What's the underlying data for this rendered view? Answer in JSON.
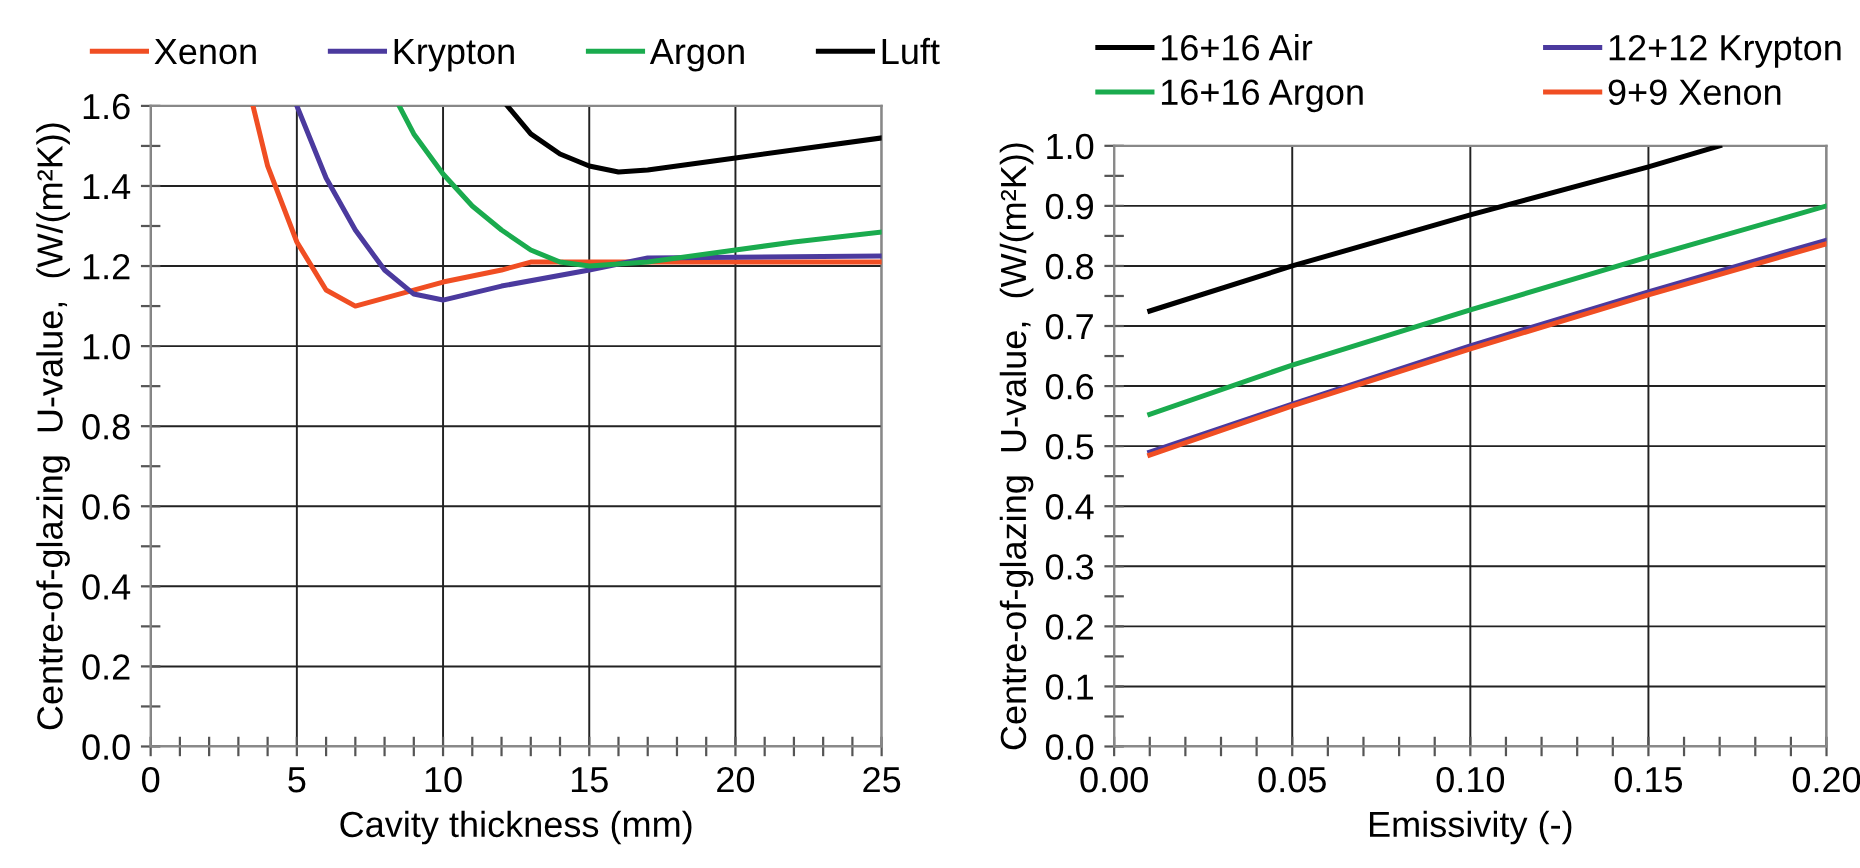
{
  "chart_data": [
    {
      "type": "line",
      "xlabel": "Cavity thickness (mm)",
      "ylabel": "Centre-of-glazing  U-value,  (W/(m²K))",
      "xlim": [
        0,
        25
      ],
      "ylim": [
        0,
        1.6
      ],
      "xticks": [
        0,
        {
          "value": 1,
          "label": null
        },
        {
          "value": 2,
          "label": null
        },
        {
          "value": 3,
          "label": null
        },
        {
          "value": 4,
          "label": null
        },
        5,
        {
          "value": 6,
          "label": null
        },
        {
          "value": 7,
          "label": null
        },
        {
          "value": 8,
          "label": null
        },
        {
          "value": 9,
          "label": null
        },
        10,
        {
          "value": 11,
          "label": null
        },
        {
          "value": 12,
          "label": null
        },
        {
          "value": 13,
          "label": null
        },
        {
          "value": 14,
          "label": null
        },
        15,
        {
          "value": 16,
          "label": null
        },
        {
          "value": 17,
          "label": null
        },
        {
          "value": 18,
          "label": null
        },
        {
          "value": 19,
          "label": null
        },
        20,
        {
          "value": 21,
          "label": null
        },
        {
          "value": 22,
          "label": null
        },
        {
          "value": 23,
          "label": null
        },
        {
          "value": 24,
          "label": null
        },
        25
      ],
      "yticks": [
        {
          "value": 0,
          "label": "0.0"
        },
        {
          "value": 0.1,
          "label": null
        },
        {
          "value": 0.2,
          "label": "0.2"
        },
        {
          "value": 0.3,
          "label": null
        },
        {
          "value": 0.4,
          "label": "0.4"
        },
        {
          "value": 0.5,
          "label": null
        },
        {
          "value": 0.6,
          "label": "0.6"
        },
        {
          "value": 0.7,
          "label": null
        },
        {
          "value": 0.8,
          "label": "0.8"
        },
        {
          "value": 0.9,
          "label": null
        },
        {
          "value": 1.0,
          "label": "1.0"
        },
        {
          "value": 1.1,
          "label": null
        },
        {
          "value": 1.2,
          "label": "1.2"
        },
        {
          "value": 1.3,
          "label": null
        },
        {
          "value": 1.4,
          "label": "1.4"
        },
        {
          "value": 1.5,
          "label": null
        },
        {
          "value": 1.6,
          "label": "1.6"
        }
      ],
      "grid": true,
      "legend": "top",
      "marker": "none",
      "line_style": "solid",
      "series": [
        {
          "name": "Xenon",
          "color": "#f04e23",
          "x": [
            3.5,
            4,
            5,
            6,
            7,
            8,
            10,
            12,
            13,
            25
          ],
          "values": [
            1.6,
            1.45,
            1.26,
            1.14,
            1.1,
            1.12,
            1.16,
            1.19,
            1.21,
            1.21
          ]
        },
        {
          "name": "Krypton",
          "color": "#4b3a9e",
          "x": [
            5,
            6,
            7,
            8,
            9,
            10,
            12,
            15,
            17,
            25
          ],
          "values": [
            1.6,
            1.42,
            1.29,
            1.19,
            1.13,
            1.115,
            1.15,
            1.19,
            1.22,
            1.225
          ]
        },
        {
          "name": "Argon",
          "color": "#1aab4e",
          "x": [
            8.5,
            9,
            10,
            11,
            12,
            13,
            14,
            15,
            17,
            20,
            22,
            25
          ],
          "values": [
            1.6,
            1.53,
            1.43,
            1.35,
            1.29,
            1.24,
            1.21,
            1.2,
            1.21,
            1.24,
            1.26,
            1.285
          ]
        },
        {
          "name": "Luft",
          "color": "#000000",
          "x": [
            12.2,
            13,
            14,
            15,
            16,
            17,
            20,
            25
          ],
          "values": [
            1.6,
            1.53,
            1.48,
            1.45,
            1.435,
            1.44,
            1.47,
            1.52
          ]
        }
      ]
    },
    {
      "type": "line",
      "xlabel": "Emissivity (-)",
      "ylabel": "Centre-of-glazing  U-value,  (W/(m²K))",
      "xlim": [
        0,
        0.2
      ],
      "ylim": [
        0,
        1.0
      ],
      "xticks": [
        {
          "value": 0,
          "label": "0.00"
        },
        {
          "value": 0.01,
          "label": null
        },
        {
          "value": 0.02,
          "label": null
        },
        {
          "value": 0.03,
          "label": null
        },
        {
          "value": 0.04,
          "label": null
        },
        {
          "value": 0.05,
          "label": "0.05"
        },
        {
          "value": 0.06,
          "label": null
        },
        {
          "value": 0.07,
          "label": null
        },
        {
          "value": 0.08,
          "label": null
        },
        {
          "value": 0.09,
          "label": null
        },
        {
          "value": 0.1,
          "label": "0.10"
        },
        {
          "value": 0.11,
          "label": null
        },
        {
          "value": 0.12,
          "label": null
        },
        {
          "value": 0.13,
          "label": null
        },
        {
          "value": 0.14,
          "label": null
        },
        {
          "value": 0.15,
          "label": "0.15"
        },
        {
          "value": 0.16,
          "label": null
        },
        {
          "value": 0.17,
          "label": null
        },
        {
          "value": 0.18,
          "label": null
        },
        {
          "value": 0.19,
          "label": null
        },
        {
          "value": 0.2,
          "label": "0.20"
        }
      ],
      "yticks": [
        {
          "value": 0,
          "label": "0.0"
        },
        {
          "value": 0.05,
          "label": null
        },
        {
          "value": 0.1,
          "label": "0.1"
        },
        {
          "value": 0.15,
          "label": null
        },
        {
          "value": 0.2,
          "label": "0.2"
        },
        {
          "value": 0.25,
          "label": null
        },
        {
          "value": 0.3,
          "label": "0.3"
        },
        {
          "value": 0.35,
          "label": null
        },
        {
          "value": 0.4,
          "label": "0.4"
        },
        {
          "value": 0.45,
          "label": null
        },
        {
          "value": 0.5,
          "label": "0.5"
        },
        {
          "value": 0.55,
          "label": null
        },
        {
          "value": 0.6,
          "label": "0.6"
        },
        {
          "value": 0.65,
          "label": null
        },
        {
          "value": 0.7,
          "label": "0.7"
        },
        {
          "value": 0.75,
          "label": null
        },
        {
          "value": 0.8,
          "label": "0.8"
        },
        {
          "value": 0.85,
          "label": null
        },
        {
          "value": 0.9,
          "label": "0.9"
        },
        {
          "value": 0.95,
          "label": null
        },
        {
          "value": 1.0,
          "label": "1.0"
        }
      ],
      "grid": true,
      "legend": "top",
      "marker": "none",
      "line_style": "solid",
      "series": [
        {
          "name": "16+16 Air",
          "color": "#000000",
          "x": [
            0.01,
            0.05,
            0.1,
            0.15,
            0.17
          ],
          "values": [
            0.725,
            0.8,
            0.885,
            0.965,
            1.0
          ]
        },
        {
          "name": "16+16 Argon",
          "color": "#1aab4e",
          "x": [
            0.01,
            0.05,
            0.1,
            0.15,
            0.2
          ],
          "values": [
            0.553,
            0.635,
            0.727,
            0.815,
            0.9
          ]
        },
        {
          "name": "12+12 Krypton",
          "color": "#4b3a9e",
          "x": [
            0.01,
            0.05,
            0.1,
            0.15,
            0.2
          ],
          "values": [
            0.49,
            0.57,
            0.667,
            0.757,
            0.843
          ]
        },
        {
          "name": "9+9 Xenon",
          "color": "#f04e23",
          "x": [
            0.01,
            0.05,
            0.1,
            0.15,
            0.2
          ],
          "values": [
            0.485,
            0.567,
            0.662,
            0.752,
            0.837
          ]
        }
      ]
    }
  ]
}
